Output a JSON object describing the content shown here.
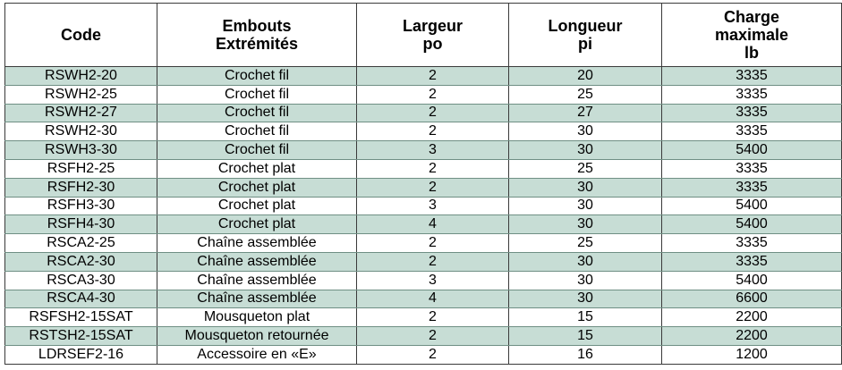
{
  "headers": {
    "code": "Code",
    "embouts_1": "Embouts",
    "embouts_2": "Extrémités",
    "largeur_1": "Largeur",
    "largeur_2": "po",
    "longueur_1": "Longueur",
    "longueur_2": "pi",
    "charge_1": "Charge",
    "charge_2": "maximale",
    "charge_3": "lb"
  },
  "rows": [
    {
      "code": "RSWH2-20",
      "embout": "Crochet fil",
      "largeur": "2",
      "longueur": "20",
      "charge": "3335",
      "shaded": true
    },
    {
      "code": "RSWH2-25",
      "embout": "Crochet fil",
      "largeur": "2",
      "longueur": "25",
      "charge": "3335",
      "shaded": false
    },
    {
      "code": "RSWH2-27",
      "embout": "Crochet fil",
      "largeur": "2",
      "longueur": "27",
      "charge": "3335",
      "shaded": true
    },
    {
      "code": "RSWH2-30",
      "embout": "Crochet fil",
      "largeur": "2",
      "longueur": "30",
      "charge": "3335",
      "shaded": false
    },
    {
      "code": "RSWH3-30",
      "embout": "Crochet fil",
      "largeur": "3",
      "longueur": "30",
      "charge": "5400",
      "shaded": true
    },
    {
      "code": "RSFH2-25",
      "embout": "Crochet plat",
      "largeur": "2",
      "longueur": "25",
      "charge": "3335",
      "shaded": false
    },
    {
      "code": "RSFH2-30",
      "embout": "Crochet plat",
      "largeur": "2",
      "longueur": "30",
      "charge": "3335",
      "shaded": true
    },
    {
      "code": "RSFH3-30",
      "embout": "Crochet plat",
      "largeur": "3",
      "longueur": "30",
      "charge": "5400",
      "shaded": false
    },
    {
      "code": "RSFH4-30",
      "embout": "Crochet plat",
      "largeur": "4",
      "longueur": "30",
      "charge": "5400",
      "shaded": true
    },
    {
      "code": "RSCA2-25",
      "embout": "Chaîne assemblée",
      "largeur": "2",
      "longueur": "25",
      "charge": "3335",
      "shaded": false
    },
    {
      "code": "RSCA2-30",
      "embout": "Chaîne assemblée",
      "largeur": "2",
      "longueur": "30",
      "charge": "3335",
      "shaded": true
    },
    {
      "code": "RSCA3-30",
      "embout": "Chaîne assemblée",
      "largeur": "3",
      "longueur": "30",
      "charge": "5400",
      "shaded": false
    },
    {
      "code": "RSCA4-30",
      "embout": "Chaîne assemblée",
      "largeur": "4",
      "longueur": "30",
      "charge": "6600",
      "shaded": true
    },
    {
      "code": "RSFSH2-15SAT",
      "embout": "Mousqueton plat",
      "largeur": "2",
      "longueur": "15",
      "charge": "2200",
      "shaded": false
    },
    {
      "code": "RSTSH2-15SAT",
      "embout": "Mousqueton retournée",
      "largeur": "2",
      "longueur": "15",
      "charge": "2200",
      "shaded": true
    },
    {
      "code": "LDRSEF2-16",
      "embout": "Accessoire en «E»",
      "largeur": "2",
      "longueur": "16",
      "charge": "1200",
      "shaded": false
    }
  ]
}
